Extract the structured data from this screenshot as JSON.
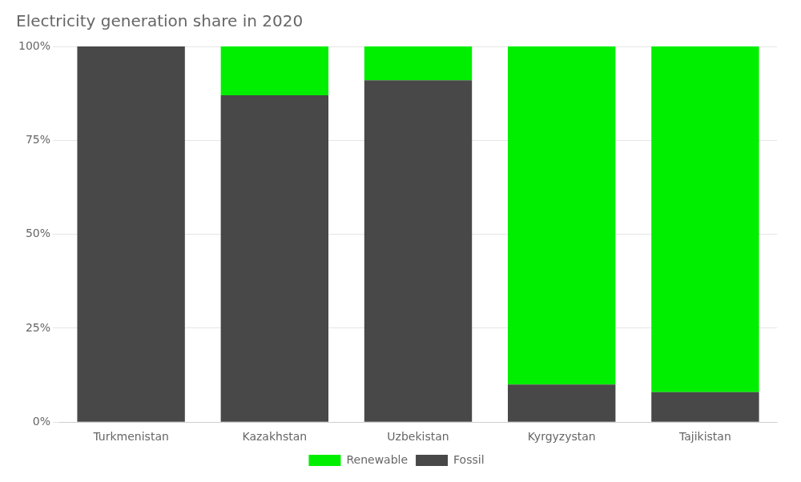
{
  "chart_data": {
    "type": "bar",
    "title": "Electricity generation share in 2020",
    "categories": [
      "Turkmenistan",
      "Kazakhstan",
      "Uzbekistan",
      "Kyrgyzystan",
      "Tajikistan"
    ],
    "series": [
      {
        "name": "Fossil",
        "color": "#484848",
        "values": [
          100,
          87,
          91,
          10,
          8
        ]
      },
      {
        "name": "Renewable",
        "color": "#00ee00",
        "values": [
          0,
          13,
          9,
          90,
          92
        ]
      }
    ],
    "stacked": true,
    "ylim": [
      0,
      100
    ],
    "yticks": [
      {
        "value": 0,
        "label": "0%"
      },
      {
        "value": 25,
        "label": "25%"
      },
      {
        "value": 50,
        "label": "50%"
      },
      {
        "value": 75,
        "label": "75%"
      },
      {
        "value": 100,
        "label": "100%"
      }
    ],
    "grid": true,
    "legend": "bottom"
  }
}
